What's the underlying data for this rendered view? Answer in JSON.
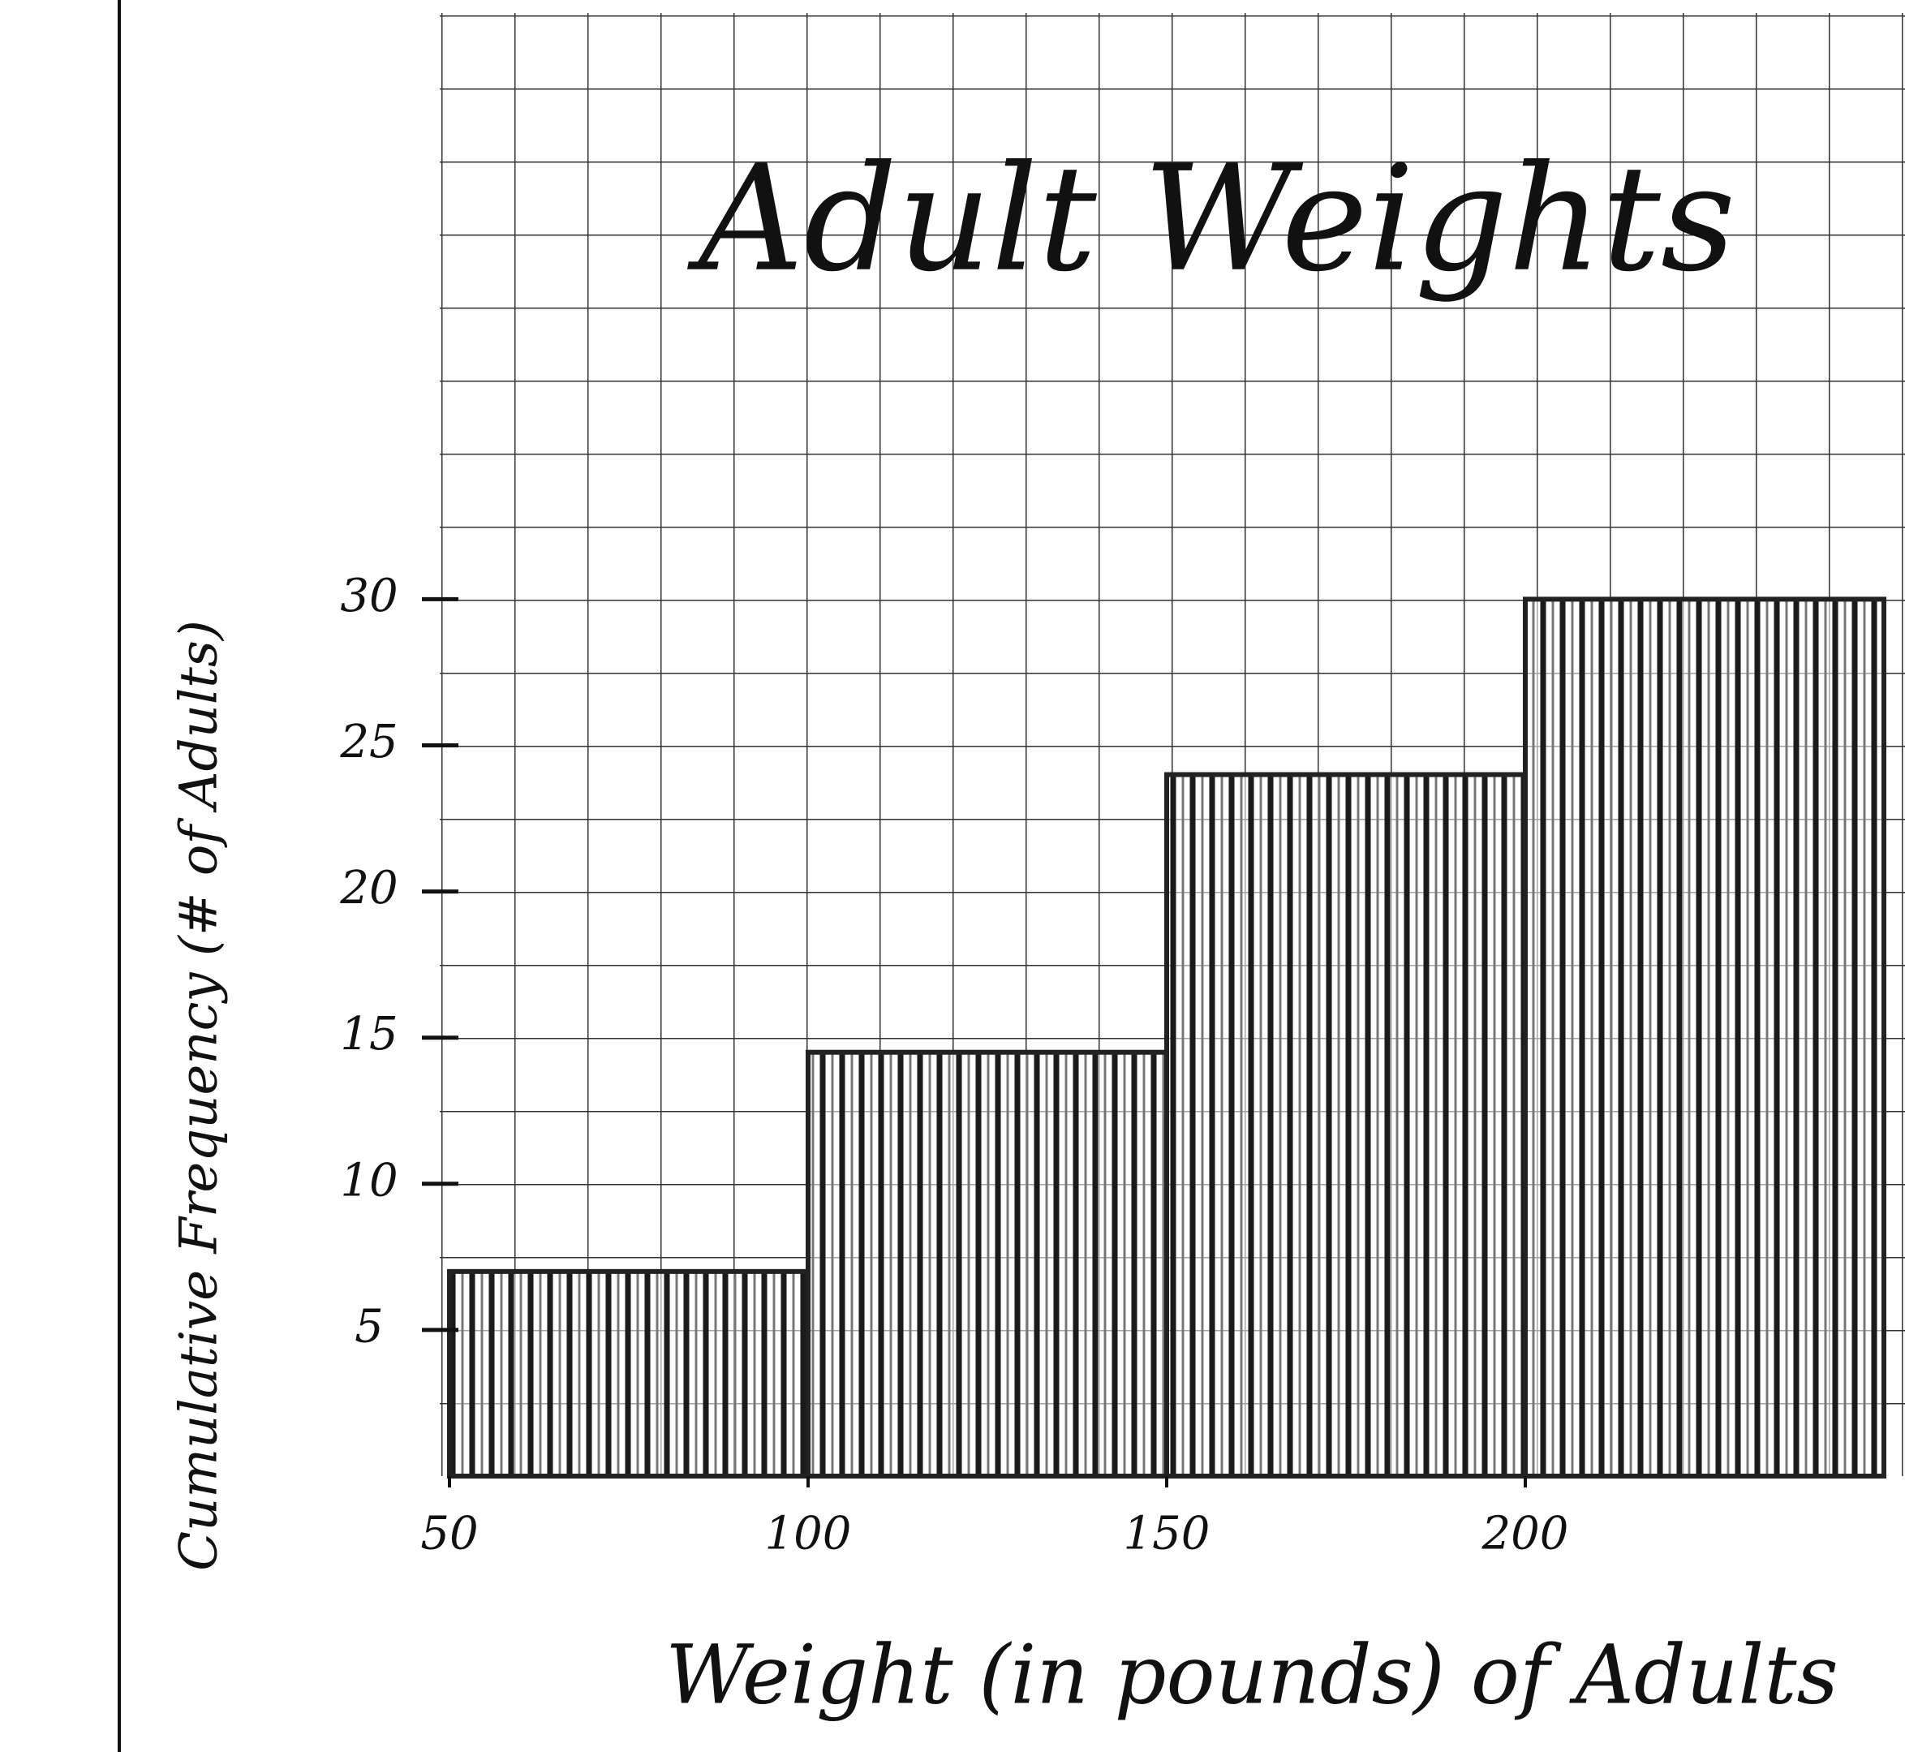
{
  "chart_data": {
    "type": "histogram",
    "title": "Adult Weights",
    "x_label": "Weight (in pounds) of Adults",
    "y_label": "Cumulative Frequency (# of Adults)",
    "bins": [
      50,
      100,
      150,
      200,
      250
    ],
    "values": [
      7,
      14.5,
      24,
      30
    ],
    "color": "#222222",
    "xlim": [
      50,
      250
    ],
    "xticks": [
      50,
      100,
      150,
      200
    ],
    "ylim": [
      0,
      50
    ],
    "yticks": [
      5,
      10,
      15,
      20,
      25,
      30
    ]
  }
}
